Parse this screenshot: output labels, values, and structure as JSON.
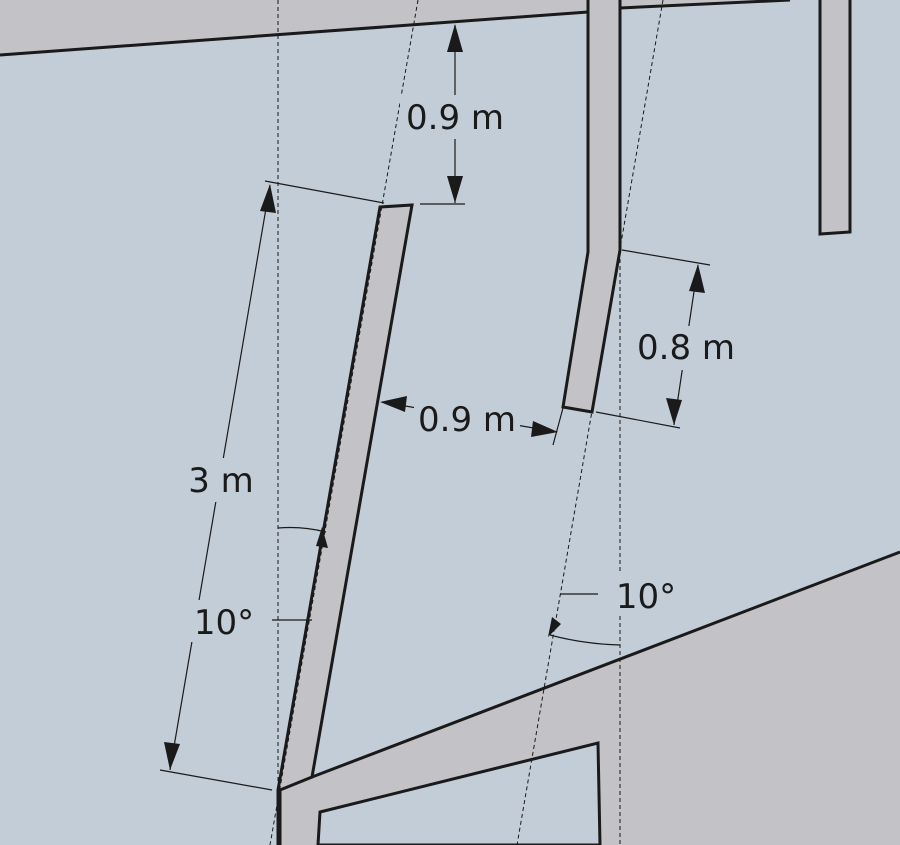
{
  "diagram": {
    "colors": {
      "background": "#c3cdd8",
      "wall": "#c3c2c7",
      "line": "#1a1a1a"
    },
    "labels": {
      "top_gap": "0.9 m",
      "right_length": "0.8 m",
      "mid_gap": "0.9 m",
      "left_length": "3 m",
      "left_angle": "10°",
      "right_angle": "10°"
    }
  }
}
